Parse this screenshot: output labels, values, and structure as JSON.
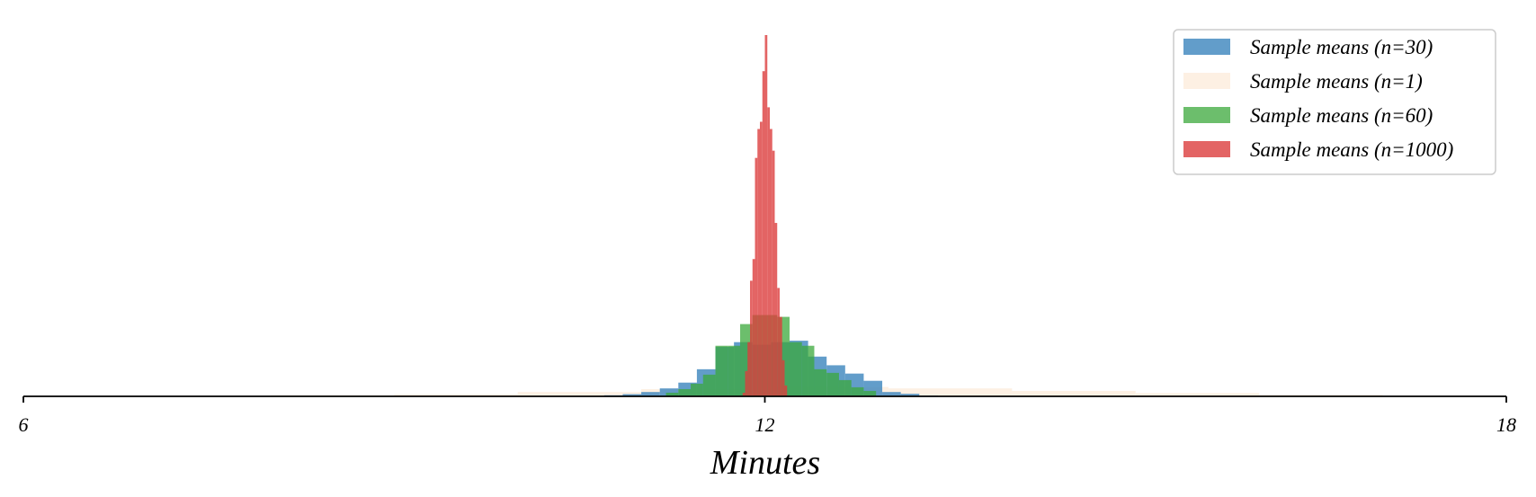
{
  "chart_data": {
    "type": "bar",
    "title": "",
    "xlabel": "Minutes",
    "ylabel": "",
    "xlim": [
      6,
      18
    ],
    "ylim": [
      0,
      1.0
    ],
    "xticks": [
      {
        "value": 6,
        "label": "6"
      },
      {
        "value": 12,
        "label": "12"
      },
      {
        "value": 18,
        "label": "18"
      }
    ],
    "grid": false,
    "legend_position": "top-right",
    "series": [
      {
        "name": "Sample means (n=1)",
        "color": "#fdeee0",
        "opacity": 0.9,
        "bin_width": 1.0,
        "bins": [
          [
            8.0,
            0.003
          ],
          [
            9.0,
            0.006
          ],
          [
            10.0,
            0.012
          ],
          [
            11.0,
            0.02
          ],
          [
            12.0,
            0.026
          ],
          [
            13.0,
            0.022
          ],
          [
            14.0,
            0.015
          ],
          [
            15.0,
            0.009
          ],
          [
            16.0,
            0.004
          ]
        ]
      },
      {
        "name": "Sample means (n=30)",
        "color": "#3b84bd",
        "opacity": 0.8,
        "bin_width": 0.15,
        "bins": [
          [
            10.7,
            0.003
          ],
          [
            10.85,
            0.006
          ],
          [
            11.0,
            0.012
          ],
          [
            11.15,
            0.022
          ],
          [
            11.3,
            0.038
          ],
          [
            11.45,
            0.075
          ],
          [
            11.6,
            0.137
          ],
          [
            11.75,
            0.15
          ],
          [
            11.9,
            0.143
          ],
          [
            12.05,
            0.15
          ],
          [
            12.2,
            0.154
          ],
          [
            12.35,
            0.11
          ],
          [
            12.5,
            0.086
          ],
          [
            12.65,
            0.063
          ],
          [
            12.8,
            0.043
          ],
          [
            12.95,
            0.012
          ],
          [
            13.1,
            0.007
          ],
          [
            13.25,
            0.002
          ]
        ]
      },
      {
        "name": "Sample means (n=60)",
        "color": "#3ba83b",
        "opacity": 0.75,
        "bin_width": 0.1,
        "bins": [
          [
            11.2,
            0.01
          ],
          [
            11.3,
            0.02
          ],
          [
            11.4,
            0.035
          ],
          [
            11.5,
            0.06
          ],
          [
            11.6,
            0.14
          ],
          [
            11.7,
            0.14
          ],
          [
            11.8,
            0.2
          ],
          [
            11.9,
            0.225
          ],
          [
            12.0,
            0.225
          ],
          [
            12.1,
            0.22
          ],
          [
            12.2,
            0.15
          ],
          [
            12.3,
            0.14
          ],
          [
            12.4,
            0.075
          ],
          [
            12.5,
            0.065
          ],
          [
            12.6,
            0.045
          ],
          [
            12.7,
            0.025
          ],
          [
            12.8,
            0.015
          ]
        ]
      },
      {
        "name": "Sample means (n=1000)",
        "color": "#dc3d3d",
        "opacity": 0.8,
        "bin_width": 0.02,
        "bins": [
          [
            11.82,
            0.01
          ],
          [
            11.84,
            0.07
          ],
          [
            11.86,
            0.15
          ],
          [
            11.88,
            0.32
          ],
          [
            11.9,
            0.38
          ],
          [
            11.92,
            0.66
          ],
          [
            11.94,
            0.74
          ],
          [
            11.96,
            0.76
          ],
          [
            11.98,
            0.9
          ],
          [
            12.0,
            1.0
          ],
          [
            12.02,
            0.8
          ],
          [
            12.04,
            0.74
          ],
          [
            12.06,
            0.68
          ],
          [
            12.08,
            0.48
          ],
          [
            12.1,
            0.3
          ],
          [
            12.12,
            0.22
          ],
          [
            12.14,
            0.1
          ],
          [
            12.16,
            0.03
          ]
        ]
      }
    ],
    "draw_order": [
      "Sample means (n=1)",
      "Sample means (n=30)",
      "Sample means (n=60)",
      "Sample means (n=1000)"
    ],
    "legend_order": [
      "Sample means (n=30)",
      "Sample means (n=1)",
      "Sample means (n=60)",
      "Sample means (n=1000)"
    ]
  }
}
